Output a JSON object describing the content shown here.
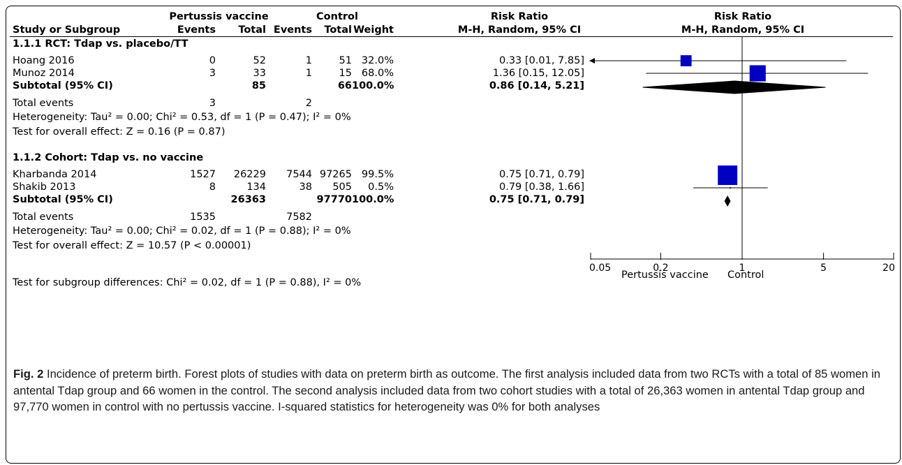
{
  "header": {
    "group1": "Pertussis vaccine",
    "group2": "Control",
    "rr_title": "Risk Ratio",
    "rr_title_plot": "Risk Ratio",
    "col_study": "Study or Subgroup",
    "col_events1": "Events",
    "col_total1": "Total",
    "col_events2": "Events",
    "col_total2": "Total",
    "col_weight": "Weight",
    "col_method": "M-H, Random, 95% CI",
    "col_method_plot": "M-H, Random, 95% CI"
  },
  "subgroups": [
    {
      "title": "1.1.1 RCT: Tdap vs. placebo/TT",
      "studies": [
        {
          "name": "Hoang 2016",
          "e1": "0",
          "t1": "52",
          "e2": "1",
          "t2": "51",
          "weight": "32.0%",
          "ci": "0.33 [0.01, 7.85]"
        },
        {
          "name": "Munoz 2014",
          "e1": "3",
          "t1": "33",
          "e2": "1",
          "t2": "15",
          "weight": "68.0%",
          "ci": "1.36 [0.15, 12.05]"
        }
      ],
      "subtotal": {
        "label": "Subtotal (95% CI)",
        "t1": "85",
        "t2": "66",
        "weight": "100.0%",
        "ci": "0.86 [0.14, 5.21]"
      },
      "total_events": {
        "label": "Total events",
        "e1": "3",
        "e2": "2"
      },
      "heterogeneity": "Heterogeneity: Tau² = 0.00; Chi² = 0.53, df = 1 (P = 0.47); I² = 0%",
      "overall": "Test for overall effect: Z = 0.16 (P = 0.87)"
    },
    {
      "title": "1.1.2 Cohort: Tdap vs. no vaccine",
      "studies": [
        {
          "name": "Kharbanda 2014",
          "e1": "1527",
          "t1": "26229",
          "e2": "7544",
          "t2": "97265",
          "weight": "99.5%",
          "ci": "0.75 [0.71, 0.79]"
        },
        {
          "name": "Shakib 2013",
          "e1": "8",
          "t1": "134",
          "e2": "38",
          "t2": "505",
          "weight": "0.5%",
          "ci": "0.79 [0.38, 1.66]"
        }
      ],
      "subtotal": {
        "label": "Subtotal (95% CI)",
        "t1": "26363",
        "t2": "97770",
        "weight": "100.0%",
        "ci": "0.75 [0.71, 0.79]"
      },
      "total_events": {
        "label": "Total events",
        "e1": "1535",
        "e2": "7582"
      },
      "heterogeneity": "Heterogeneity: Tau² = 0.00; Chi² = 0.02, df = 1 (P = 0.88); I² = 0%",
      "overall": "Test for overall effect: Z = 10.57 (P < 0.00001)"
    }
  ],
  "subgroup_test": "Test for subgroup differences: Chi² = 0.02, df = 1 (P = 0.88), I² = 0%",
  "axis_labels": {
    "left": "Pertussis vaccine",
    "right": "Control"
  },
  "caption": {
    "label": "Fig. 2",
    "text": " Incidence of preterm birth. Forest plots of studies with data on preterm birth as outcome. The first analysis included data from two RCTs with a total of 85 women in antental Tdap group and 66 women in the control. The second analysis included data from two cohort studies with a total of 26,363 women in antental Tdap group and 97,770 women in control with no pertussis vaccine. I-squared statistics for heterogeneity was 0% for both analyses"
  },
  "colors": {
    "marker": "#0000c0",
    "diamond": "#000000",
    "line": "#000000"
  },
  "chart_data": {
    "type": "forest",
    "scale": "log",
    "xlim": [
      0.05,
      20
    ],
    "ticks": [
      0.05,
      0.2,
      1,
      5,
      20
    ],
    "tick_labels": [
      "0.05",
      "0.2",
      "1",
      "5",
      "20"
    ],
    "null_line": 1,
    "studies": [
      {
        "name": "Hoang 2016",
        "rr": 0.33,
        "lo": 0.01,
        "hi": 7.85,
        "weight": 32.0,
        "kind": "study",
        "group": 0
      },
      {
        "name": "Munoz 2014",
        "rr": 1.36,
        "lo": 0.15,
        "hi": 12.05,
        "weight": 68.0,
        "kind": "study",
        "group": 0
      },
      {
        "name": "Subtotal (95% CI)",
        "rr": 0.86,
        "lo": 0.14,
        "hi": 5.21,
        "kind": "subtotal",
        "group": 0
      },
      {
        "name": "Kharbanda 2014",
        "rr": 0.75,
        "lo": 0.71,
        "hi": 0.79,
        "weight": 99.5,
        "kind": "study",
        "group": 1
      },
      {
        "name": "Shakib 2013",
        "rr": 0.79,
        "lo": 0.38,
        "hi": 1.66,
        "weight": 0.5,
        "kind": "study",
        "group": 1
      },
      {
        "name": "Subtotal (95% CI)",
        "rr": 0.75,
        "lo": 0.71,
        "hi": 0.79,
        "kind": "subtotal",
        "group": 1
      }
    ]
  }
}
